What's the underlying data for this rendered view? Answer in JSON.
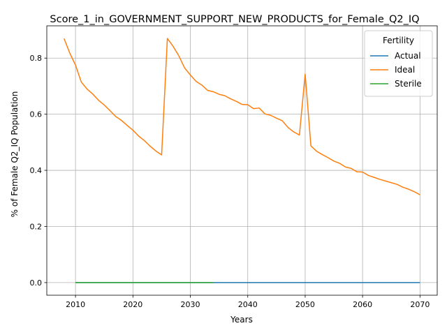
{
  "chart_data": {
    "type": "line",
    "title": "Score_1_in_GOVERNMENT_SUPPORT_NEW_PRODUCTS_for_Female_Q2_IQ",
    "xlabel": "Years",
    "ylabel": "% of Female Q2_IQ Population",
    "xlim": [
      2005,
      2073
    ],
    "ylim": [
      -0.045,
      0.915
    ],
    "xticks": [
      2010,
      2020,
      2030,
      2040,
      2050,
      2060,
      2070
    ],
    "yticks": [
      0.0,
      0.2,
      0.4,
      0.6,
      0.8
    ],
    "ytick_labels": [
      "0.0",
      "0.2",
      "0.4",
      "0.6",
      "0.8"
    ],
    "grid": true,
    "legend": {
      "title": "Fertility",
      "placement": "top-right"
    },
    "series": [
      {
        "name": "Actual",
        "color": "#1f77b4",
        "x": [
          2010,
          2070
        ],
        "y": [
          0.0,
          0.0
        ]
      },
      {
        "name": "Ideal",
        "color": "#ff7f0e",
        "x": [
          2008,
          2009,
          2010,
          2011,
          2012,
          2013,
          2014,
          2015,
          2016,
          2017,
          2018,
          2019,
          2020,
          2021,
          2022,
          2023,
          2024,
          2025,
          2026,
          2027,
          2028,
          2029,
          2030,
          2031,
          2032,
          2033,
          2034,
          2035,
          2036,
          2037,
          2038,
          2039,
          2040,
          2041,
          2042,
          2043,
          2044,
          2045,
          2046,
          2047,
          2048,
          2049,
          2050,
          2051,
          2052,
          2053,
          2054,
          2055,
          2056,
          2057,
          2058,
          2059,
          2060,
          2061,
          2062,
          2063,
          2064,
          2065,
          2066,
          2067,
          2068,
          2069,
          2070
        ],
        "y": [
          0.87,
          0.818,
          0.775,
          0.715,
          0.69,
          0.672,
          0.65,
          0.633,
          0.613,
          0.592,
          0.578,
          0.56,
          0.543,
          0.522,
          0.506,
          0.486,
          0.469,
          0.455,
          0.87,
          0.842,
          0.808,
          0.765,
          0.74,
          0.717,
          0.704,
          0.685,
          0.68,
          0.671,
          0.666,
          0.655,
          0.646,
          0.635,
          0.634,
          0.62,
          0.622,
          0.601,
          0.596,
          0.586,
          0.577,
          0.553,
          0.537,
          0.526,
          0.743,
          0.487,
          0.468,
          0.456,
          0.445,
          0.433,
          0.425,
          0.412,
          0.407,
          0.395,
          0.394,
          0.382,
          0.375,
          0.368,
          0.362,
          0.356,
          0.35,
          0.34,
          0.333,
          0.324,
          0.313
        ]
      },
      {
        "name": "Sterile",
        "color": "#2ca02c",
        "x": [
          2010,
          2034
        ],
        "y": [
          0.0,
          0.0
        ]
      }
    ]
  }
}
